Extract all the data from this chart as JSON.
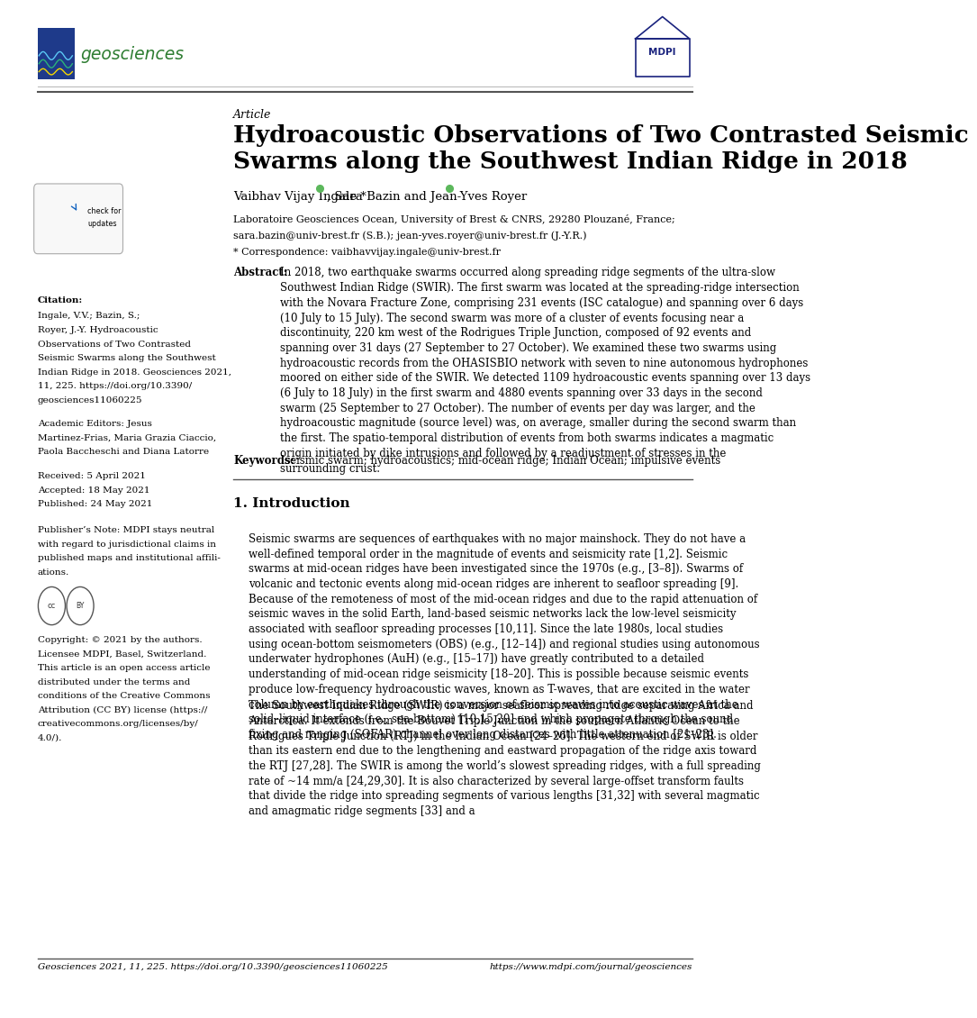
{
  "page_width": 10.2,
  "page_height": 14.42,
  "bg_color": "#ffffff",
  "journal_name": "geosciences",
  "article_label": "Article",
  "title": "Hydroacoustic Observations of Two Contrasted Seismic\nSwarms along the Southwest Indian Ridge in 2018",
  "author_part1": "Vaibhav Vijay Ingale *",
  "author_part2": ", Sara Bazin and Jean-Yves Royer",
  "affiliation_lines": [
    "Laboratoire Geosciences Ocean, University of Brest & CNRS, 29280 Plouzané, France;",
    "sara.bazin@univ-brest.fr (S.B.); jean-yves.royer@univ-brest.fr (J.-Y.R.)",
    "* Correspondence: vaibhavvijay.ingale@univ-brest.fr"
  ],
  "abstract_title": "Abstract:",
  "abstract_text": "In 2018, two earthquake swarms occurred along spreading ridge segments of the ultra-slow Southwest Indian Ridge (SWIR). The first swarm was located at the spreading-ridge intersection with the Novara Fracture Zone, comprising 231 events (ISC catalogue) and spanning over 6 days (10 July to 15 July). The second swarm was more of a cluster of events focusing near a discontinuity, 220 km west of the Rodrigues Triple Junction, composed of 92 events and spanning over 31 days (27 September to 27 October). We examined these two swarms using hydroacoustic records from the OHASISBIO network with seven to nine autonomous hydrophones moored on either side of the SWIR. We detected 1109 hydroacoustic events spanning over 13 days (6 July to 18 July) in the first swarm and 4880 events spanning over 33 days in the second swarm (25 September to 27 October). The number of events per day was larger, and the hydroacoustic magnitude (source level) was, on average, smaller during the second swarm than the first. The spatio-temporal distribution of events from both swarms indicates a magmatic origin initiated by dike intrusions and followed by a readjustment of stresses in the surrounding crust.",
  "keywords_title": "Keywords:",
  "keywords_text": "seismic swarm; hydroacoustics; mid-ocean ridge; Indian Ocean; impulsive events",
  "section1_title": "1. Introduction",
  "section1_p1": "Seismic swarms are sequences of earthquakes with no major mainshock. They do not have a well-defined temporal order in the magnitude of events and seismicity rate [1,2]. Seismic swarms at mid-ocean ridges have been investigated since the 1970s (e.g., [3–8]). Swarms of volcanic and tectonic events along mid-ocean ridges are inherent to seafloor spreading [9]. Because of the remoteness of most of the mid-ocean ridges and due to the rapid attenuation of seismic waves in the solid Earth, land-based seismic networks lack the low-level seismicity associated with seafloor spreading processes [10,11]. Since the late 1980s, local studies using ocean-bottom seismometers (OBS) (e.g., [12–14]) and regional studies using autonomous underwater hydrophones (AuH) (e.g., [15–17]) have greatly contributed to a detailed understanding of mid-ocean ridge seismicity [18–20]. This is possible because seismic events produce low-frequency hydroacoustic waves, known as T-waves, that are excited in the water column by earthquakes through the conversion of seismic waves into acoustic waves at the solid–liquid interface (i.e., sea-bottom) [10,15,20] and which propagate through the sound fixing and ranging (SOFAR) channel over long distances with little attenuation [21–23].",
  "section1_p2": "The Southwest Indian Ridge (SWIR) is a major seafloor spreading ridge separating Africa and Antarctica. It extends from the Bouvet Triple Junction in the southern Atlantic Ocean to the Rodrigues Triple Junction (RTJ) in the Indian Ocean [24–26]. The western end of SWIR is older than its eastern end due to the lengthening and eastward propagation of the ridge axis toward the RTJ [27,28]. The SWIR is among the world’s slowest spreading ridges, with a full spreading rate of ~14 mm/a [24,29,30]. It is also characterized by several large-offset transform faults that divide the ridge into spreading segments of various lengths [31,32] with several magmatic and amagmatic ridge segments [33] and a",
  "citation_label": "Citation:",
  "citation_lines": [
    "Ingale, V.V.; Bazin, S.;",
    "Royer, J.-Y. Hydroacoustic",
    "Observations of Two Contrasted",
    "Seismic Swarms along the Southwest",
    "Indian Ridge in 2018. Geosciences 2021,",
    "11, 225. https://doi.org/10.3390/",
    "geosciences11060225"
  ],
  "academic_editors": [
    "Academic Editors: Jesus",
    "Martinez-Frias, Maria Grazia Ciaccio,",
    "Paola Baccheschi and Diana Latorre"
  ],
  "received": "Received: 5 April 2021",
  "accepted": "Accepted: 18 May 2021",
  "published": "Published: 24 May 2021",
  "publisher_note_lines": [
    "Publisher’s Note: MDPI stays neutral",
    "with regard to jurisdictional claims in",
    "published maps and institutional affili-",
    "ations."
  ],
  "copyright_lines": [
    "Copyright: © 2021 by the authors.",
    "Licensee MDPI, Basel, Switzerland.",
    "This article is an open access article",
    "distributed under the terms and",
    "conditions of the Creative Commons",
    "Attribution (CC BY) license (https://",
    "creativecommons.org/licenses/by/",
    "4.0/)."
  ],
  "footer_left": "Geosciences 2021, 11, 225. https://doi.org/10.3390/geosciences11060225",
  "footer_right": "https://www.mdpi.com/journal/geosciences"
}
